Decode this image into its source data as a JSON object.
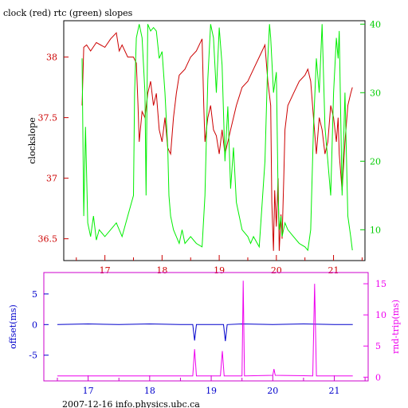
{
  "chart_data": [
    {
      "type": "line",
      "title": "clock (red) rtc (green) slopes",
      "ylabel": "clockslope",
      "x_ticks": [
        17,
        18,
        19,
        20,
        21
      ],
      "xlim": [
        16.28,
        21.55
      ],
      "y_left": {
        "lim": [
          36.32,
          38.3
        ],
        "ticks": [
          36.5,
          37,
          37.5,
          38
        ],
        "tick_labels": [
          "36.5",
          "37",
          "37.5",
          "38"
        ]
      },
      "y_right": {
        "lim": [
          5.5,
          40.5
        ],
        "ticks": [
          10,
          20,
          30,
          40
        ],
        "tick_labels": [
          "10",
          "20",
          "30",
          "40"
        ]
      },
      "colors": {
        "clock": "#cc0000",
        "rtc": "#00ee00",
        "left_axis": "#cc0000",
        "right_axis": "#00cc00",
        "frame": "#000000"
      },
      "series": [
        {
          "axis": "left",
          "color": "#cc0000",
          "x": [
            16.6,
            16.63,
            16.68,
            16.75,
            16.85,
            17.0,
            17.1,
            17.2,
            17.25,
            17.3,
            17.4,
            17.5,
            17.55,
            17.58,
            17.6,
            17.65,
            17.7,
            17.75,
            17.8,
            17.85,
            17.9,
            17.95,
            18.0,
            18.05,
            18.1,
            18.15,
            18.2,
            18.25,
            18.3,
            18.4,
            18.5,
            18.6,
            18.7,
            18.73,
            18.75,
            18.8,
            18.85,
            18.9,
            18.95,
            19.0,
            19.05,
            19.1,
            19.15,
            19.2,
            19.25,
            19.3,
            19.4,
            19.5,
            19.6,
            19.7,
            19.8,
            19.85,
            19.9,
            19.92,
            19.95,
            19.97,
            20.0,
            20.03,
            20.05,
            20.08,
            20.1,
            20.13,
            20.15,
            20.2,
            20.3,
            20.4,
            20.5,
            20.55,
            20.6,
            20.65,
            20.7,
            20.75,
            20.8,
            20.85,
            20.9,
            20.95,
            21.0,
            21.05,
            21.08,
            21.1,
            21.15,
            21.2,
            21.25,
            21.3,
            21.33
          ],
          "y": [
            37.6,
            38.08,
            38.1,
            38.05,
            38.12,
            38.08,
            38.15,
            38.2,
            38.05,
            38.1,
            38.0,
            38.0,
            37.95,
            37.6,
            37.3,
            37.55,
            37.5,
            37.7,
            37.8,
            37.6,
            37.7,
            37.4,
            37.3,
            37.5,
            37.25,
            37.2,
            37.5,
            37.7,
            37.85,
            37.9,
            38.0,
            38.05,
            38.15,
            37.6,
            37.3,
            37.5,
            37.6,
            37.4,
            37.35,
            37.2,
            37.4,
            37.2,
            37.3,
            37.4,
            37.5,
            37.6,
            37.75,
            37.8,
            37.9,
            38.0,
            38.1,
            37.8,
            37.6,
            36.8,
            36.4,
            36.9,
            36.6,
            37.0,
            36.4,
            36.7,
            36.5,
            37.0,
            37.4,
            37.6,
            37.7,
            37.8,
            37.85,
            37.9,
            37.8,
            37.5,
            37.2,
            37.5,
            37.4,
            37.2,
            37.3,
            37.6,
            37.5,
            37.3,
            37.5,
            37.2,
            36.9,
            37.3,
            37.6,
            37.7,
            37.75
          ]
        },
        {
          "axis": "right",
          "color": "#00ee00",
          "x": [
            16.6,
            16.63,
            16.66,
            16.7,
            16.75,
            16.8,
            16.85,
            16.9,
            17.0,
            17.1,
            17.2,
            17.3,
            17.4,
            17.5,
            17.52,
            17.55,
            17.6,
            17.65,
            17.7,
            17.72,
            17.75,
            17.8,
            17.85,
            17.9,
            17.95,
            18.0,
            18.05,
            18.1,
            18.12,
            18.15,
            18.2,
            18.25,
            18.3,
            18.35,
            18.4,
            18.5,
            18.6,
            18.7,
            18.75,
            18.8,
            18.85,
            18.9,
            18.95,
            19.0,
            19.05,
            19.1,
            19.15,
            19.2,
            19.25,
            19.3,
            19.35,
            19.4,
            19.5,
            19.55,
            19.6,
            19.7,
            19.8,
            19.85,
            19.88,
            19.9,
            19.95,
            20.0,
            20.03,
            20.05,
            20.08,
            20.1,
            20.15,
            20.2,
            20.3,
            20.4,
            20.5,
            20.55,
            20.6,
            20.65,
            20.7,
            20.75,
            20.8,
            20.85,
            20.9,
            20.95,
            21.0,
            21.05,
            21.08,
            21.1,
            21.15,
            21.2,
            21.25,
            21.3,
            21.33
          ],
          "y": [
            35.0,
            12.0,
            25.0,
            11.0,
            9.0,
            12.0,
            8.5,
            10.0,
            9.0,
            10.0,
            11.0,
            9.0,
            12.0,
            15.0,
            30.0,
            38.0,
            40.0,
            38.0,
            30.0,
            15.0,
            40.0,
            39.0,
            39.5,
            39.0,
            35.0,
            36.0,
            30.0,
            22.0,
            15.0,
            12.0,
            10.0,
            9.0,
            8.0,
            10.0,
            8.0,
            9.0,
            8.0,
            7.5,
            15.0,
            32.0,
            40.0,
            38.0,
            30.0,
            39.5,
            34.0,
            20.0,
            28.0,
            16.0,
            22.0,
            14.0,
            12.0,
            10.0,
            9.0,
            8.0,
            9.0,
            7.5,
            20.0,
            35.0,
            40.0,
            38.0,
            30.0,
            33.0,
            15.0,
            10.0,
            12.0,
            9.0,
            11.0,
            10.0,
            9.0,
            8.0,
            7.5,
            7.0,
            10.0,
            25.0,
            35.0,
            30.0,
            40.0,
            25.0,
            20.0,
            15.0,
            30.0,
            38.0,
            35.0,
            39.0,
            15.0,
            30.0,
            12.0,
            9.0,
            7.0
          ]
        }
      ]
    },
    {
      "type": "line",
      "xlabel": "",
      "ylabel_left": "offset(ms)",
      "ylabel_right": "rnd-trip(ms)",
      "x_ticks": [
        17,
        18,
        19,
        20,
        21
      ],
      "xlim": [
        16.28,
        21.55
      ],
      "y_left": {
        "lim": [
          -9.2,
          8.5
        ],
        "ticks": [
          -5,
          0,
          5
        ],
        "tick_labels": [
          "-5",
          "0",
          "5"
        ]
      },
      "y_right": {
        "lim": [
          -0.6,
          16.8
        ],
        "ticks": [
          0,
          5,
          10,
          15
        ],
        "tick_labels": [
          "0",
          "5",
          "10",
          "15"
        ]
      },
      "colors": {
        "offset": "#0000cc",
        "roundtrip": "#ee00ee",
        "frame": "#cc00cc"
      },
      "series": [
        {
          "axis": "left",
          "color": "#0000cc",
          "x": [
            16.5,
            17.0,
            17.5,
            18.0,
            18.5,
            18.7,
            18.73,
            18.76,
            19.0,
            19.2,
            19.23,
            19.26,
            19.5,
            20.0,
            20.5,
            21.0,
            21.3
          ],
          "y": [
            0.0,
            0.1,
            0.0,
            0.1,
            0.0,
            0.0,
            -2.6,
            0.0,
            0.0,
            0.0,
            -2.7,
            0.0,
            0.1,
            0.0,
            0.1,
            0.0,
            0.0
          ]
        },
        {
          "axis": "right",
          "color": "#ee00ee",
          "x": [
            16.5,
            18.0,
            18.7,
            18.73,
            18.76,
            19.15,
            19.18,
            19.21,
            19.5,
            19.52,
            19.54,
            20.0,
            20.02,
            20.04,
            20.65,
            20.68,
            20.71,
            21.3
          ],
          "y": [
            0.2,
            0.2,
            0.2,
            4.5,
            0.2,
            0.2,
            4.2,
            0.2,
            0.2,
            15.5,
            0.2,
            0.3,
            1.3,
            0.3,
            0.2,
            15.0,
            0.2,
            0.2
          ]
        }
      ]
    }
  ],
  "footer": {
    "text": "2007-12-16 info.physics.ubc.ca"
  }
}
